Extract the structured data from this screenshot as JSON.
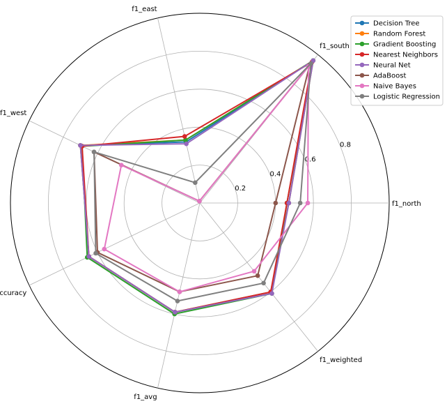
{
  "chart_data": {
    "type": "radar",
    "axes": [
      "f1_north",
      "f1_south",
      "f1_east",
      "f1_west",
      "accuracy",
      "f1_avg",
      "f1_weighted"
    ],
    "rlim": [
      0,
      1
    ],
    "radial_ticks": [
      0.2,
      0.4,
      0.6,
      0.8
    ],
    "radial_tick_labels": [
      "0.2",
      "0.4",
      "0.6",
      "0.8"
    ],
    "grid": true,
    "legend_position": "top-right",
    "series": [
      {
        "name": "Decision Tree",
        "color": "#1f77b4",
        "values": [
          0.47,
          0.96,
          0.33,
          0.7,
          0.65,
          0.59,
          0.6
        ]
      },
      {
        "name": "Random Forest",
        "color": "#ff7f0e",
        "values": [
          0.47,
          0.96,
          0.34,
          0.7,
          0.65,
          0.59,
          0.6
        ]
      },
      {
        "name": "Gradient Boosting",
        "color": "#2ca02c",
        "values": [
          0.46,
          0.96,
          0.34,
          0.69,
          0.66,
          0.6,
          0.61
        ]
      },
      {
        "name": "Nearest Neighbors",
        "color": "#d62728",
        "values": [
          0.46,
          0.95,
          0.36,
          0.69,
          0.65,
          0.59,
          0.6
        ]
      },
      {
        "name": "Neural Net",
        "color": "#9467bd",
        "values": [
          0.47,
          0.96,
          0.32,
          0.7,
          0.65,
          0.59,
          0.61
        ]
      },
      {
        "name": "AdaBoost",
        "color": "#8c564b",
        "values": [
          0.4,
          0.93,
          0.01,
          0.62,
          0.6,
          0.48,
          0.49
        ]
      },
      {
        "name": "Naive Bayes",
        "color": "#e377c2",
        "values": [
          0.57,
          0.92,
          0.01,
          0.46,
          0.56,
          0.48,
          0.46
        ]
      },
      {
        "name": "Logistic Regression",
        "color": "#7f7f7f",
        "values": [
          0.53,
          0.94,
          0.11,
          0.62,
          0.61,
          0.53,
          0.54
        ]
      }
    ]
  }
}
